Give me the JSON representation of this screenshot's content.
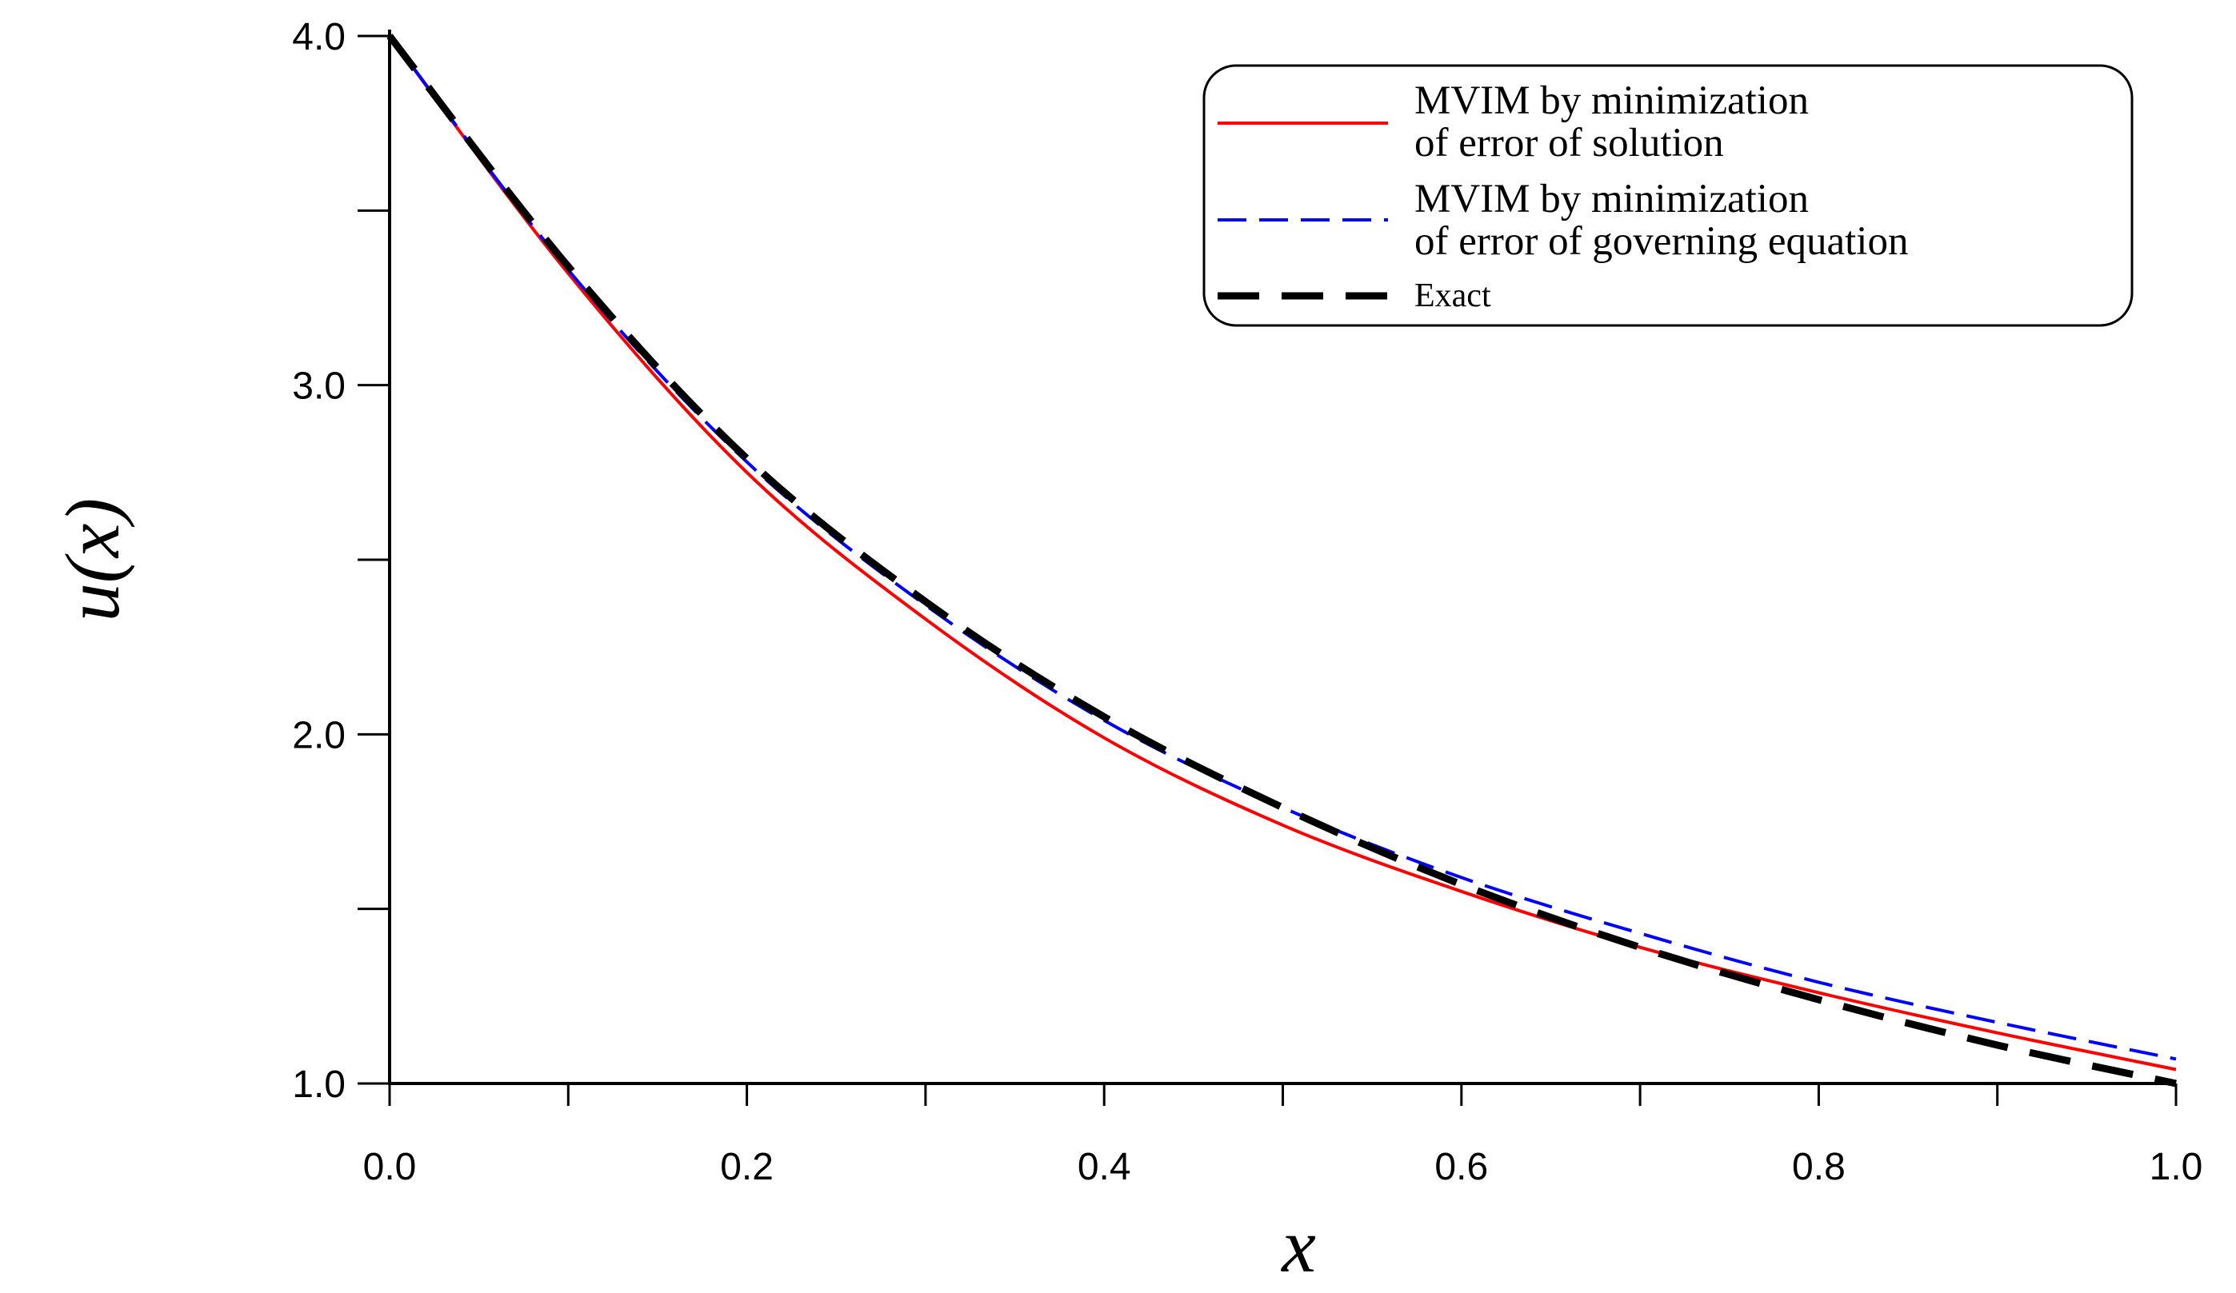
{
  "chart_data": {
    "type": "line",
    "title": "",
    "xlabel": "x",
    "ylabel": "u(x)",
    "xlim": [
      0.0,
      1.0
    ],
    "ylim": [
      1.0,
      4.0
    ],
    "x_ticks": [
      "0.0",
      "0.2",
      "0.4",
      "0.6",
      "0.8",
      "1.0"
    ],
    "y_ticks": [
      "1.0",
      "2.0",
      "3.0",
      "4.0"
    ],
    "x_minor_step": 0.1,
    "y_minor_step": 0.5,
    "grid": false,
    "legend_position": "top-right",
    "x": [
      0.0,
      0.1,
      0.2,
      0.3,
      0.4,
      0.5,
      0.6,
      0.7,
      0.8,
      0.9,
      1.0
    ],
    "series": [
      {
        "name": "MVIM by minimization of error of solution",
        "legend_lines": [
          "MVIM by minimization",
          "of error of solution"
        ],
        "style": "solid",
        "color": "#ff0000",
        "values": [
          4.0,
          3.32,
          2.75,
          2.33,
          1.99,
          1.74,
          1.55,
          1.39,
          1.26,
          1.145,
          1.04
        ]
      },
      {
        "name": "MVIM by minimization of error of governing equation",
        "legend_lines": [
          "MVIM by minimization",
          "of error of governing equation"
        ],
        "style": "dashed",
        "color": "#0000ff",
        "values": [
          4.0,
          3.33,
          2.78,
          2.37,
          2.04,
          1.79,
          1.59,
          1.43,
          1.29,
          1.175,
          1.07
        ]
      },
      {
        "name": "Exact",
        "legend_lines": [
          "Exact"
        ],
        "style": "long-dashed",
        "color": "#000000",
        "values": [
          4.0,
          3.34,
          2.79,
          2.38,
          2.05,
          1.79,
          1.57,
          1.39,
          1.24,
          1.11,
          1.0
        ]
      }
    ]
  }
}
